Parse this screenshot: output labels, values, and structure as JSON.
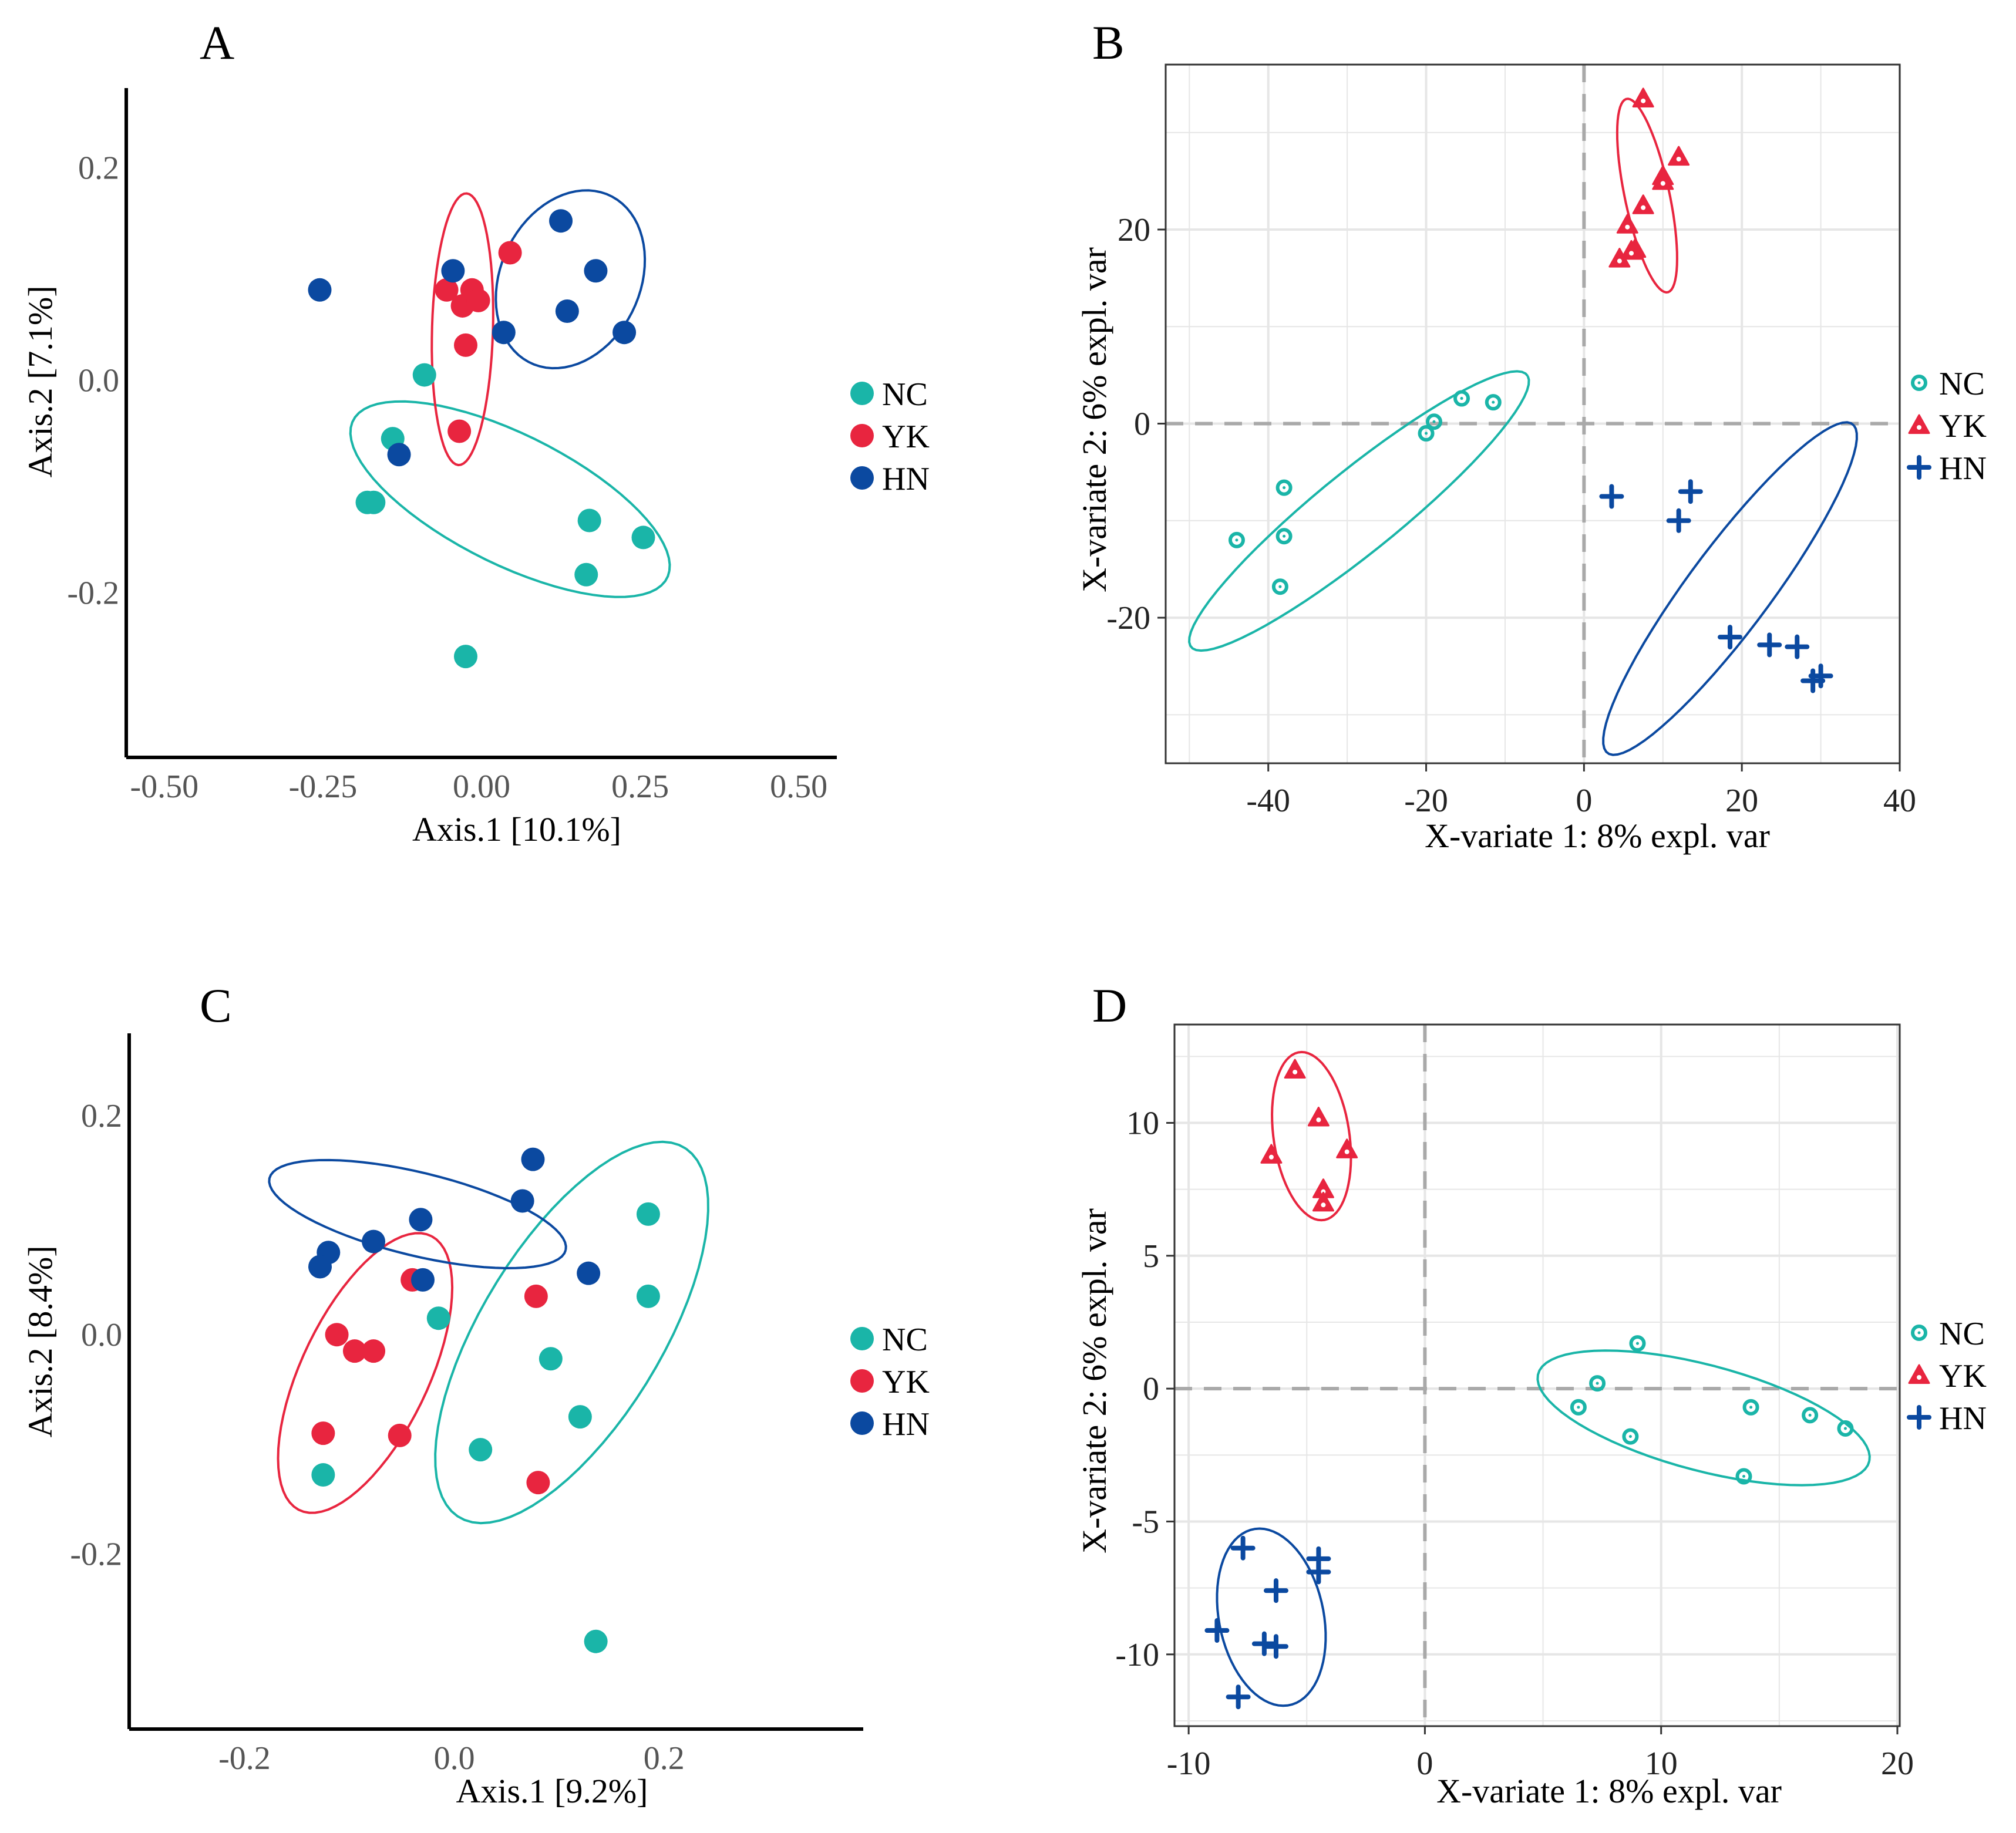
{
  "colors": {
    "NC": "#1ab5a8",
    "YK": "#e8253f",
    "HN": "#0b49a0"
  },
  "chart_data": [
    {
      "panel": "A",
      "type": "scatter",
      "style": "pcoa",
      "xlabel": "Axis.1 [10.1%]",
      "ylabel": "Axis.2 [7.1%]",
      "xlim": [
        -0.56,
        0.56
      ],
      "ylim": [
        -0.355,
        0.275
      ],
      "xticks": [
        -0.5,
        -0.25,
        0.0,
        0.25,
        0.5
      ],
      "xticklabels": [
        "-0.50",
        "-0.25",
        "0.00",
        "0.25",
        "0.50"
      ],
      "yticks": [
        0.2,
        0.0,
        -0.2
      ],
      "yticklabels": [
        "0.2",
        "0.0",
        "-0.2"
      ],
      "legend": [
        "NC",
        "YK",
        "HN"
      ],
      "series": [
        {
          "name": "NC",
          "marker": "filled-circle",
          "x": [
            -0.09,
            -0.14,
            -0.18,
            -0.17,
            0.17,
            0.255,
            0.165,
            -0.025
          ],
          "y": [
            0.005,
            -0.055,
            -0.115,
            -0.115,
            -0.132,
            -0.148,
            -0.183,
            -0.26
          ],
          "ellipse": {
            "cx": 0.045,
            "cy": -0.112,
            "rx": 0.26,
            "ry": 0.065,
            "angle": -15
          }
        },
        {
          "name": "YK",
          "marker": "filled-circle",
          "x": [
            0.045,
            -0.055,
            -0.03,
            -0.015,
            -0.005,
            -0.025,
            -0.035
          ],
          "y": [
            0.12,
            0.085,
            0.07,
            0.085,
            0.075,
            0.033,
            -0.048
          ],
          "ellipse": {
            "cx": -0.03,
            "cy": 0.048,
            "rx": 0.048,
            "ry": 0.128,
            "angle": -3
          }
        },
        {
          "name": "HN",
          "marker": "filled-circle",
          "x": [
            -0.255,
            -0.045,
            0.125,
            0.18,
            0.035,
            0.135,
            0.225,
            -0.13
          ],
          "y": [
            0.085,
            0.103,
            0.15,
            0.103,
            0.045,
            0.065,
            0.045,
            -0.07
          ],
          "ellipse": {
            "cx": 0.14,
            "cy": 0.095,
            "rx": 0.12,
            "ry": 0.08,
            "angle": 16
          }
        }
      ]
    },
    {
      "panel": "B",
      "type": "scatter",
      "style": "plsda",
      "xlabel": "X-variate 1: 8% expl. var",
      "ylabel": "X-variate 2: 6% expl. var",
      "xlim": [
        -53,
        40
      ],
      "ylim": [
        -35,
        37
      ],
      "xticks": [
        -40,
        -20,
        0,
        20,
        40
      ],
      "xticklabels": [
        "-40",
        "-20",
        "0",
        "20",
        "40"
      ],
      "yticks": [
        20,
        0,
        -20
      ],
      "yticklabels": [
        "20",
        "0",
        "-20"
      ],
      "legend": [
        "NC",
        "YK",
        "HN"
      ],
      "series": [
        {
          "name": "NC",
          "marker": "ring-dot",
          "x": [
            -15.5,
            -11.5,
            -19,
            -20,
            -38,
            -38,
            -44,
            -38.5
          ],
          "y": [
            2.6,
            2.2,
            0.2,
            -1,
            -6.6,
            -11.6,
            -12,
            -16.8
          ],
          "ellipse": {
            "cx": -28.5,
            "cy": -9,
            "rx": 25.5,
            "ry": 4.5,
            "angle": 33
          }
        },
        {
          "name": "YK",
          "marker": "triangle",
          "x": [
            7.5,
            12,
            10,
            10,
            7.5,
            6.5,
            6,
            5.5,
            4.5
          ],
          "y": [
            33.5,
            27.5,
            25.5,
            25,
            22.5,
            18,
            17.8,
            20.5,
            17
          ],
          "ellipse": {
            "cx": 8,
            "cy": 23.5,
            "rx": 2.8,
            "ry": 10.3,
            "angle": 15
          }
        },
        {
          "name": "HN",
          "marker": "plus",
          "x": [
            3.5,
            13.5,
            12,
            18.5,
            23.5,
            27,
            29,
            30
          ],
          "y": [
            -7.5,
            -7,
            -10,
            -22,
            -22.8,
            -23,
            -26.5,
            -26
          ],
          "ellipse": {
            "cx": 18.5,
            "cy": -17,
            "rx": 23,
            "ry": 4.8,
            "angle": 47
          }
        }
      ]
    },
    {
      "panel": "C",
      "type": "scatter",
      "style": "pcoa",
      "xlabel": "Axis.1 [9.2%]",
      "ylabel": "Axis.2 [8.4%]",
      "xlim": [
        -0.31,
        0.39
      ],
      "ylim": [
        -0.36,
        0.275
      ],
      "xticks": [
        -0.2,
        0.0,
        0.2
      ],
      "xticklabels": [
        "-0.2",
        "0.0",
        "0.2"
      ],
      "yticks": [
        0.2,
        0.0,
        -0.2
      ],
      "yticklabels": [
        "0.2",
        "0.0",
        "-0.2"
      ],
      "legend": [
        "NC",
        "YK",
        "HN"
      ],
      "series": [
        {
          "name": "NC",
          "marker": "filled-circle",
          "x": [
            0.185,
            0.185,
            -0.015,
            0.092,
            0.12,
            0.025,
            -0.125,
            0.135
          ],
          "y": [
            0.11,
            0.035,
            0.015,
            -0.022,
            -0.075,
            -0.105,
            -0.128,
            -0.28
          ],
          "ellipse": {
            "cx": 0.112,
            "cy": 0.002,
            "rx": 0.2,
            "ry": 0.085,
            "angle": 57
          }
        },
        {
          "name": "YK",
          "marker": "filled-circle",
          "x": [
            -0.04,
            0.078,
            -0.112,
            -0.095,
            -0.077,
            -0.125,
            -0.052,
            0.08
          ],
          "y": [
            0.05,
            0.035,
            0.0,
            -0.015,
            -0.015,
            -0.09,
            -0.092,
            -0.135
          ],
          "ellipse": {
            "cx": -0.085,
            "cy": -0.035,
            "rx": 0.14,
            "ry": 0.06,
            "angle": 63
          }
        },
        {
          "name": "HN",
          "marker": "filled-circle",
          "x": [
            0.075,
            0.065,
            -0.032,
            -0.077,
            -0.12,
            -0.128,
            -0.03,
            0.128
          ],
          "y": [
            0.16,
            0.122,
            0.105,
            0.085,
            0.075,
            0.062,
            0.05,
            0.056
          ],
          "ellipse": {
            "cx": -0.035,
            "cy": 0.11,
            "rx": 0.145,
            "ry": 0.038,
            "angle": -13
          }
        }
      ]
    },
    {
      "panel": "D",
      "type": "scatter",
      "style": "plsda",
      "xlabel": "X-variate 1: 8% expl. var",
      "ylabel": "X-variate 2: 6% expl. var",
      "xlim": [
        -10.6,
        20.1
      ],
      "ylim": [
        -12.7,
        13.7
      ],
      "xticks": [
        -10,
        0,
        10,
        20
      ],
      "xticklabels": [
        "-10",
        "0",
        "10",
        "20"
      ],
      "yticks": [
        10,
        5,
        0,
        -5,
        -10
      ],
      "yticklabels": [
        "10",
        "5",
        "0",
        "-5",
        "-10"
      ],
      "legend": [
        "NC",
        "YK",
        "HN"
      ],
      "series": [
        {
          "name": "NC",
          "marker": "ring-dot",
          "x": [
            9,
            7.3,
            6.5,
            8.7,
            13.8,
            16.3,
            17.8,
            13.5
          ],
          "y": [
            1.7,
            0.2,
            -0.7,
            -1.8,
            -0.7,
            -1,
            -1.5,
            -3.3
          ],
          "ellipse": {
            "cx": 11.8,
            "cy": -1.1,
            "rx": 7.2,
            "ry": 2.0,
            "angle": -13
          }
        },
        {
          "name": "YK",
          "marker": "triangle",
          "x": [
            -5.5,
            -4.5,
            -6.5,
            -3.3,
            -4.3,
            -4.3
          ],
          "y": [
            12,
            10.2,
            8.8,
            9,
            7.5,
            7
          ],
          "ellipse": {
            "cx": -4.8,
            "cy": 9.5,
            "rx": 1.6,
            "ry": 3.2,
            "angle": 10
          }
        },
        {
          "name": "HN",
          "marker": "plus",
          "x": [
            -7.7,
            -4.5,
            -4.5,
            -6.3,
            -8.8,
            -6.8,
            -6.3,
            -7.9
          ],
          "y": [
            -6,
            -6.4,
            -6.9,
            -7.6,
            -9.1,
            -9.6,
            -9.7,
            -11.6
          ],
          "ellipse": {
            "cx": -6.5,
            "cy": -8.6,
            "rx": 2.2,
            "ry": 3.4,
            "angle": 15
          }
        }
      ]
    }
  ]
}
